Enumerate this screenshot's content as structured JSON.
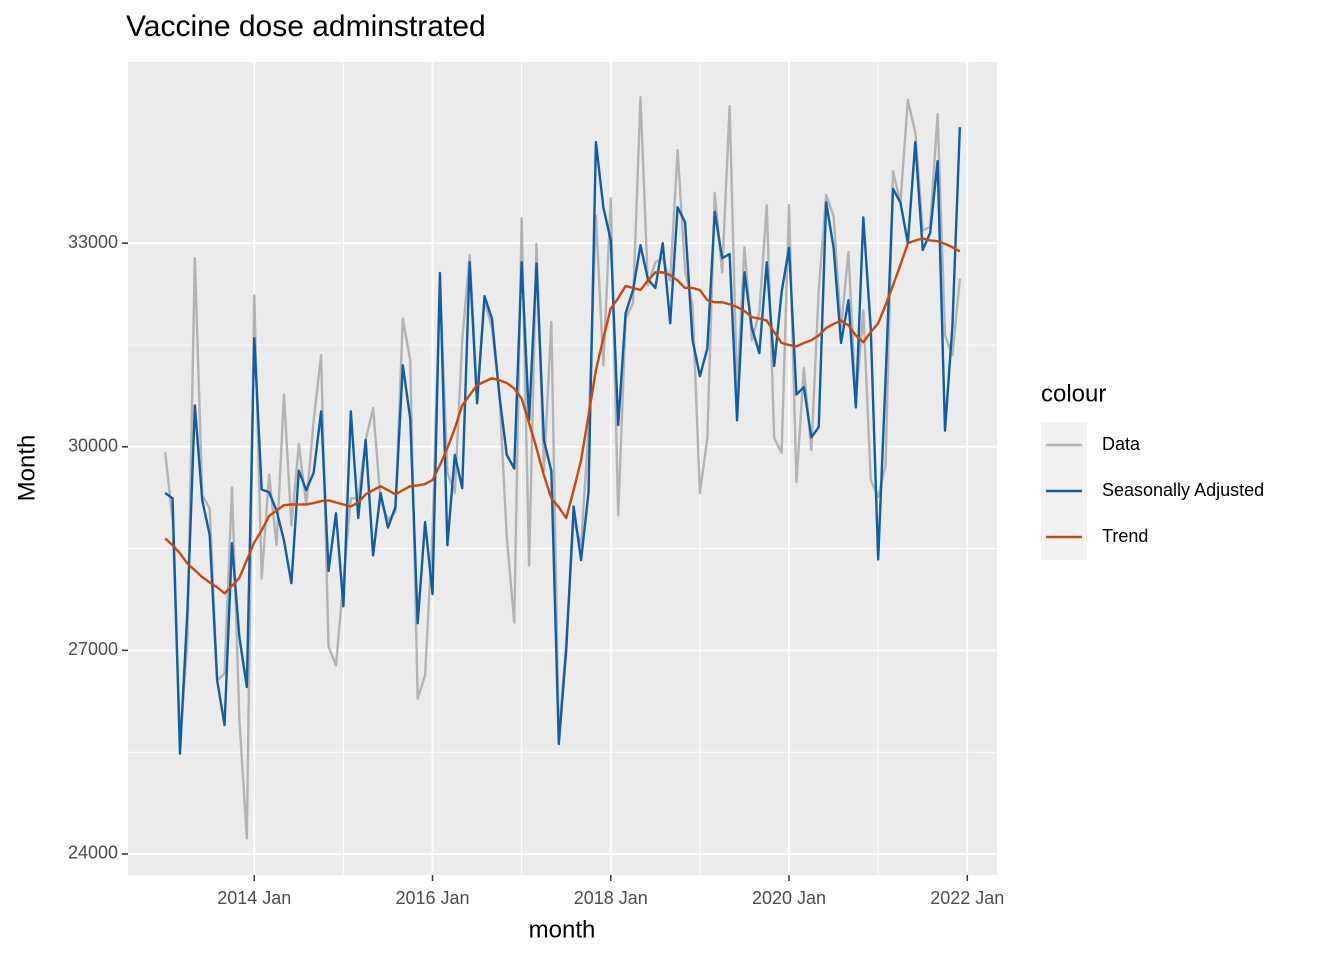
{
  "chart_data": {
    "type": "line",
    "title": "Vaccine dose adminstrated",
    "xlabel": "month",
    "ylabel": "Month",
    "legend_title": "colour",
    "legend_position": "right",
    "grid": true,
    "x": [
      "2013-01",
      "2013-02",
      "2013-03",
      "2013-04",
      "2013-05",
      "2013-06",
      "2013-07",
      "2013-08",
      "2013-09",
      "2013-10",
      "2013-11",
      "2013-12",
      "2014-01",
      "2014-02",
      "2014-03",
      "2014-04",
      "2014-05",
      "2014-06",
      "2014-07",
      "2014-08",
      "2014-09",
      "2014-10",
      "2014-11",
      "2014-12",
      "2015-01",
      "2015-02",
      "2015-03",
      "2015-04",
      "2015-05",
      "2015-06",
      "2015-07",
      "2015-08",
      "2015-09",
      "2015-10",
      "2015-11",
      "2015-12",
      "2016-01",
      "2016-02",
      "2016-03",
      "2016-04",
      "2016-05",
      "2016-06",
      "2016-07",
      "2016-08",
      "2016-09",
      "2016-10",
      "2016-11",
      "2016-12",
      "2017-01",
      "2017-02",
      "2017-03",
      "2017-04",
      "2017-05",
      "2017-06",
      "2017-07",
      "2017-08",
      "2017-09",
      "2017-10",
      "2017-11",
      "2017-12",
      "2018-01",
      "2018-02",
      "2018-03",
      "2018-04",
      "2018-05",
      "2018-06",
      "2018-07",
      "2018-08",
      "2018-09",
      "2018-10",
      "2018-11",
      "2018-12",
      "2019-01",
      "2019-02",
      "2019-03",
      "2019-04",
      "2019-05",
      "2019-06",
      "2019-07",
      "2019-08",
      "2019-09",
      "2019-10",
      "2019-11",
      "2019-12",
      "2020-01",
      "2020-02",
      "2020-03",
      "2020-04",
      "2020-05",
      "2020-06",
      "2020-07",
      "2020-08",
      "2020-09",
      "2020-10",
      "2020-11",
      "2020-12",
      "2021-01",
      "2021-02",
      "2021-03",
      "2021-04",
      "2021-05",
      "2021-06",
      "2021-07",
      "2021-08",
      "2021-09",
      "2021-10",
      "2021-11",
      "2021-12"
    ],
    "xlim": [
      "2012-08",
      "2022-05"
    ],
    "xticks": [
      {
        "value": "2014-01",
        "label": "2014 Jan"
      },
      {
        "value": "2016-01",
        "label": "2016 Jan"
      },
      {
        "value": "2018-01",
        "label": "2018 Jan"
      },
      {
        "value": "2020-01",
        "label": "2020 Jan"
      },
      {
        "value": "2022-01",
        "label": "2022 Jan"
      }
    ],
    "ylim": [
      23690,
      35670
    ],
    "yticks": [
      24000,
      27000,
      30000,
      33000
    ],
    "series": [
      {
        "name": "Data",
        "color": "#b3b3b3",
        "values": [
          29920,
          28920,
          25640,
          27150,
          32780,
          29290,
          29090,
          26560,
          26660,
          29400,
          25970,
          24230,
          32230,
          28060,
          29590,
          28550,
          30770,
          28840,
          30040,
          29140,
          30390,
          31350,
          27060,
          26780,
          28030,
          29240,
          29240,
          30100,
          30570,
          29220,
          28920,
          29040,
          31890,
          31270,
          26290,
          26630,
          28740,
          32450,
          29620,
          29320,
          31570,
          32820,
          30760,
          32160,
          31750,
          30800,
          28670,
          27410,
          33370,
          28250,
          32990,
          29650,
          31840,
          25740,
          27120,
          28920,
          28550,
          30240,
          33410,
          31200,
          33660,
          28990,
          31890,
          32120,
          35150,
          32380,
          32720,
          32780,
          32450,
          34370,
          32600,
          32090,
          29320,
          30130,
          33740,
          32570,
          35020,
          30830,
          32940,
          31570,
          31980,
          33560,
          30130,
          29910,
          33560,
          29480,
          31160,
          29950,
          32310,
          33710,
          33400,
          31750,
          32870,
          30650,
          32010,
          29510,
          29260,
          29730,
          34060,
          33600,
          35110,
          34630,
          33190,
          33240,
          34900,
          31640,
          31350,
          32480
        ]
      },
      {
        "name": "Seasonally Adjusted",
        "color": "#0f5ea3",
        "values": [
          29320,
          29240,
          25480,
          27590,
          30610,
          29210,
          28700,
          26560,
          25900,
          28580,
          27190,
          26460,
          31600,
          29370,
          29330,
          29060,
          28620,
          27990,
          29650,
          29360,
          29620,
          30520,
          28170,
          29020,
          27650,
          30520,
          28950,
          30100,
          28400,
          29320,
          28810,
          29110,
          31200,
          30420,
          27400,
          28890,
          27830,
          32560,
          28550,
          29880,
          29390,
          32720,
          30640,
          32220,
          31890,
          30760,
          29880,
          29680,
          32720,
          30390,
          32700,
          30100,
          29640,
          25620,
          27000,
          29120,
          28330,
          29320,
          34490,
          33530,
          33040,
          30320,
          31970,
          32310,
          32970,
          32470,
          32340,
          33000,
          31820,
          33530,
          33310,
          31580,
          31040,
          31450,
          33460,
          32780,
          32840,
          30390,
          32570,
          31750,
          31380,
          32720,
          31190,
          32280,
          32930,
          30770,
          30880,
          30140,
          30290,
          33600,
          32930,
          31530,
          32160,
          30580,
          33380,
          31750,
          28340,
          31010,
          33800,
          33600,
          33000,
          34490,
          32900,
          33150,
          34210,
          30240,
          31790,
          34710
        ]
      },
      {
        "name": "Trend",
        "color": "#c8490c",
        "values": [
          28650,
          28550,
          28430,
          28280,
          28180,
          28080,
          28000,
          27930,
          27840,
          27950,
          28070,
          28330,
          28590,
          28770,
          28980,
          29060,
          29140,
          29150,
          29150,
          29150,
          29170,
          29200,
          29210,
          29180,
          29150,
          29120,
          29180,
          29300,
          29360,
          29420,
          29360,
          29300,
          29360,
          29420,
          29430,
          29450,
          29510,
          29730,
          29980,
          30270,
          30610,
          30760,
          30910,
          30960,
          31010,
          30980,
          30940,
          30860,
          30710,
          30350,
          29980,
          29580,
          29240,
          29110,
          28950,
          29360,
          29800,
          30460,
          31130,
          31600,
          32040,
          32190,
          32370,
          32340,
          32310,
          32450,
          32570,
          32570,
          32530,
          32450,
          32340,
          32340,
          32310,
          32160,
          32130,
          32130,
          32100,
          32060,
          32000,
          31910,
          31890,
          31860,
          31690,
          31530,
          31500,
          31480,
          31530,
          31570,
          31640,
          31750,
          31810,
          31860,
          31790,
          31640,
          31540,
          31690,
          31820,
          32090,
          32380,
          32680,
          33000,
          33040,
          33070,
          33040,
          33030,
          32990,
          32940,
          32880
        ]
      }
    ]
  }
}
